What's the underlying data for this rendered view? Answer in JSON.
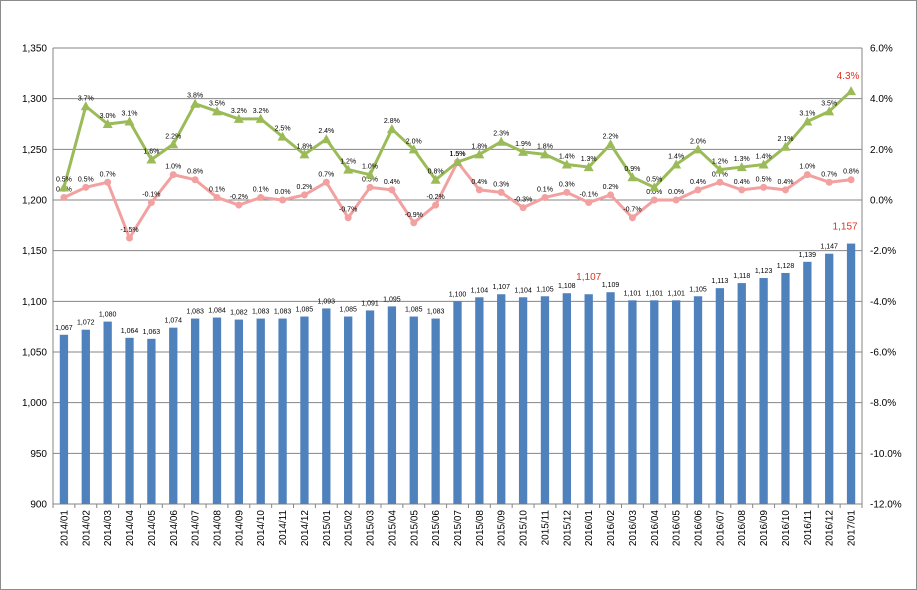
{
  "chart_data": {
    "type": "bar+line",
    "categories": [
      "2014/01",
      "2014/02",
      "2014/03",
      "2014/04",
      "2014/05",
      "2014/06",
      "2014/07",
      "2014/08",
      "2014/09",
      "2014/10",
      "2014/11",
      "2014/12",
      "2015/01",
      "2015/02",
      "2015/03",
      "2015/04",
      "2015/05",
      "2015/06",
      "2015/07",
      "2015/08",
      "2015/09",
      "2015/10",
      "2015/11",
      "2015/12",
      "2016/01",
      "2016/02",
      "2016/03",
      "2016/04",
      "2016/05",
      "2016/06",
      "2016/07",
      "2016/08",
      "2016/09",
      "2016/10",
      "2016/11",
      "2016/12",
      "2017/01"
    ],
    "series": [
      {
        "type": "bar",
        "axis": "left",
        "color": "#4f81bd",
        "values": [
          1067,
          1072,
          1080,
          1064,
          1063,
          1074,
          1083,
          1084,
          1082,
          1083,
          1083,
          1085,
          1093,
          1085,
          1091,
          1095,
          1085,
          1083,
          1100,
          1104,
          1107,
          1104,
          1105,
          1108,
          1107,
          1109,
          1101,
          1101,
          1101,
          1105,
          1113,
          1118,
          1123,
          1128,
          1139,
          1147,
          1157
        ],
        "labels": [
          "1,067",
          "1,072",
          "1,080",
          "1,064",
          "1,063",
          "1,074",
          "1,083",
          "1,084",
          "1,082",
          "1,083",
          "1,083",
          "1,085",
          "1,093",
          "1,085",
          "1,091",
          "1,095",
          "1,085",
          "1,083",
          "1,100",
          "1,104",
          "1,107",
          "1,104",
          "1,105",
          "1,108",
          "1,107",
          "1,109",
          "1,101",
          "1,101",
          "1,101",
          "1,105",
          "1,113",
          "1,118",
          "1,123",
          "1,128",
          "1,139",
          "1,147",
          "1,157"
        ]
      },
      {
        "type": "line",
        "axis": "right",
        "color": "#9bbb59",
        "marker": "triangle",
        "values": [
          0.5,
          3.7,
          3.0,
          3.1,
          1.6,
          2.2,
          3.8,
          3.5,
          3.2,
          3.2,
          2.5,
          1.8,
          2.4,
          1.2,
          1.0,
          2.8,
          2.0,
          0.8,
          1.5,
          1.8,
          2.3,
          1.9,
          1.8,
          1.4,
          1.3,
          2.2,
          0.9,
          0.5,
          1.4,
          2.0,
          1.2,
          1.3,
          1.4,
          2.1,
          3.1,
          3.5,
          4.3
        ],
        "labels": [
          "0.5%",
          "3.7%",
          "3.0%",
          "3.1%",
          "1.6%",
          "2.2%",
          "3.8%",
          "3.5%",
          "3.2%",
          "3.2%",
          "2.5%",
          "1.8%",
          "2.4%",
          "1.2%",
          "1.0%",
          "2.8%",
          "2.0%",
          "0.8%",
          "1.5%",
          "1.8%",
          "2.3%",
          "1.9%",
          "1.8%",
          "1.4%",
          "1.3%",
          "2.2%",
          "0.9%",
          "0.5%",
          "1.4%",
          "2.0%",
          "1.2%",
          "1.3%",
          "1.4%",
          "2.1%",
          "3.1%",
          "3.5%",
          "4.3%"
        ]
      },
      {
        "type": "line",
        "axis": "right",
        "color": "#f2a0a0",
        "marker": "circle",
        "values": [
          0.1,
          0.5,
          0.7,
          -1.5,
          -0.1,
          1.0,
          0.8,
          0.1,
          -0.2,
          0.1,
          0.0,
          0.2,
          0.7,
          -0.7,
          0.5,
          0.4,
          -0.9,
          -0.2,
          1.5,
          0.4,
          0.3,
          -0.3,
          0.1,
          0.3,
          -0.1,
          0.2,
          -0.7,
          0.0,
          0.0,
          0.4,
          0.7,
          0.4,
          0.5,
          0.4,
          1.0,
          0.7,
          0.8
        ],
        "labels": [
          "0.1%",
          "0.5%",
          "0.7%",
          "-1.5%",
          "-0.1%",
          "1.0%",
          "0.8%",
          "0.1%",
          "-0.2%",
          "0.1%",
          "0.0%",
          "0.2%",
          "0.7%",
          "-0.7%",
          "0.5%",
          "0.4%",
          "-0.9%",
          "-0.2%",
          "1.5%",
          "0.4%",
          "0.3%",
          "-0.3%",
          "0.1%",
          "0.3%",
          "-0.1%",
          "0.2%",
          "-0.7%",
          "0.0%",
          "0.0%",
          "0.4%",
          "0.7%",
          "0.4%",
          "0.5%",
          "0.4%",
          "1.0%",
          "0.7%",
          "0.8%"
        ]
      }
    ],
    "left_axis": {
      "min": 900,
      "max": 1350,
      "step": 50,
      "ticks": [
        "900",
        "950",
        "1,000",
        "1,050",
        "1,100",
        "1,150",
        "1,200",
        "1,250",
        "1,300",
        "1,350"
      ]
    },
    "right_axis": {
      "min": -12.0,
      "max": 6.0,
      "step": 2.0,
      "ticks": [
        "-12.0%",
        "-10.0%",
        "-8.0%",
        "-6.0%",
        "-4.0%",
        "-2.0%",
        "0.0%",
        "2.0%",
        "4.0%",
        "6.0%"
      ]
    },
    "highlights": [
      {
        "series": 0,
        "index": 24,
        "text": "1,107",
        "color": "#e0301e"
      },
      {
        "series": 0,
        "index": 36,
        "text": "1,157",
        "color": "#e0301e"
      },
      {
        "series": 1,
        "index": 36,
        "text": "4.3%",
        "color": "#e0301e"
      }
    ],
    "grid": true,
    "legend": "none"
  }
}
